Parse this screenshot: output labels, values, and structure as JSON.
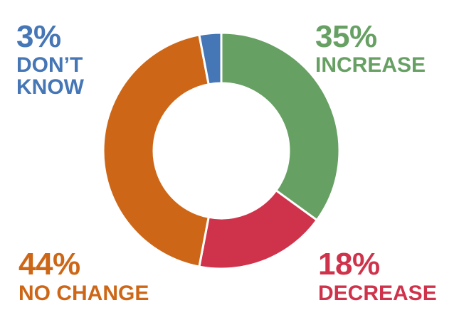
{
  "chart_data": {
    "type": "pie",
    "variant": "donut",
    "slices": [
      {
        "label": "INCREASE",
        "percent_label": "35%",
        "value": 35,
        "color": "#67a063"
      },
      {
        "label": "DECREASE",
        "percent_label": "18%",
        "value": 18,
        "color": "#cf334b"
      },
      {
        "label": "NO CHANGE",
        "percent_label": "44%",
        "value": 44,
        "color": "#cd6717"
      },
      {
        "label": "DON’T KNOW",
        "percent_label": "3%",
        "value": 3,
        "color": "#4576b6"
      }
    ]
  }
}
